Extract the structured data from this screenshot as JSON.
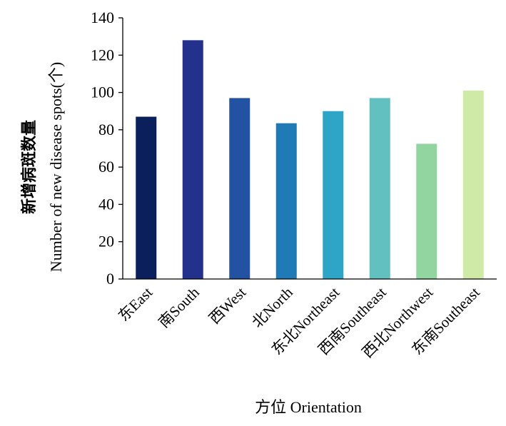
{
  "chart_data": {
    "type": "bar",
    "title": "",
    "xlabel": "方位 Orientation",
    "ylabel_line1": "新增病斑数量",
    "ylabel_line2": "Number of new disease spots(个)",
    "ylim": [
      0,
      140
    ],
    "yticks": [
      0,
      20,
      40,
      60,
      80,
      100,
      120,
      140
    ],
    "grid": false,
    "legend": "none",
    "categories": [
      "东East",
      "南South",
      "西West",
      "北North",
      "东北Northeast",
      "西南Southeast",
      "西北Northwest",
      "东南Southeast"
    ],
    "values": [
      87,
      128,
      97,
      83.5,
      90,
      97,
      72.5,
      101
    ],
    "colors": [
      "#0b1f5c",
      "#23308c",
      "#2352a2",
      "#1f7ab5",
      "#2ea5c6",
      "#62c0c0",
      "#92d5a1",
      "#cfe9a7"
    ]
  }
}
